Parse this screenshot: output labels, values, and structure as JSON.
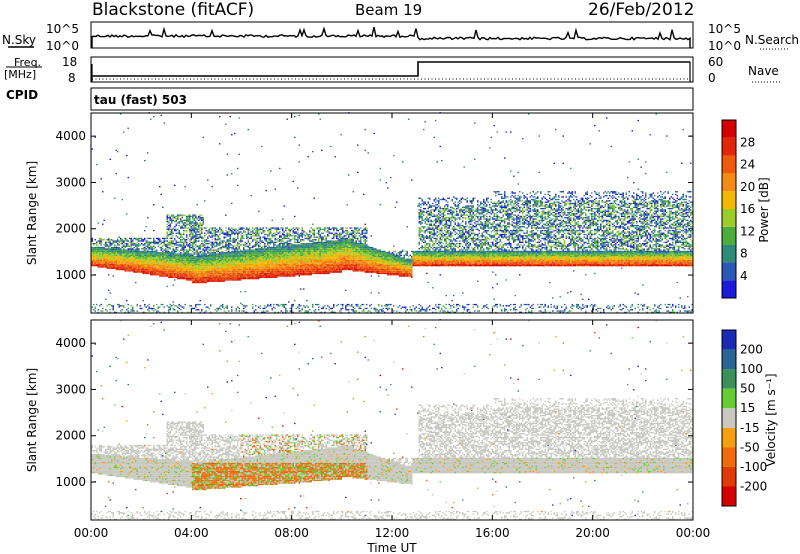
{
  "header": {
    "station": "Blackstone (fitACF)",
    "beam": "Beam 19",
    "date": "26/Feb/2012"
  },
  "noise_panel": {
    "left_label": "N.Sky",
    "right_label": "N.Search",
    "tick_top": "10^5",
    "tick_bottom": "10^0"
  },
  "freq_panel": {
    "left_label_1": "Freq.",
    "left_label_2": "[MHz]",
    "right_label": "Nave",
    "left_ticks": [
      "18",
      "8"
    ],
    "right_ticks": [
      "60",
      "0"
    ],
    "cpid_label": "CPID",
    "mode_label": "tau (fast) 503"
  },
  "x_axis": {
    "label": "Time UT",
    "ticks": [
      "00:00",
      "04:00",
      "08:00",
      "12:00",
      "16:00",
      "20:00",
      "00:00"
    ]
  },
  "chart_data": [
    {
      "type": "heatmap",
      "title": "",
      "xlabel": "Time UT",
      "ylabel": "Slant Range [km]",
      "xlim_hours": [
        0,
        24
      ],
      "ylim_km": [
        180,
        4500
      ],
      "yticks": [
        "1000",
        "2000",
        "3000",
        "4000"
      ],
      "colorbar": {
        "label": "Power [dB]",
        "ticks": [
          "4",
          "8",
          "12",
          "16",
          "20",
          "24",
          "28"
        ],
        "colors": [
          "#1a1ad8",
          "#2a56b4",
          "#2f8a78",
          "#4cae3a",
          "#9ccc2a",
          "#f5b800",
          "#f58a14",
          "#f05a0a",
          "#e02808",
          "#d40000"
        ]
      }
    },
    {
      "type": "heatmap",
      "title": "",
      "xlabel": "Time UT",
      "ylabel": "Slant Range [km]",
      "xlim_hours": [
        0,
        24
      ],
      "ylim_km": [
        180,
        4500
      ],
      "yticks": [
        "1000",
        "2000",
        "3000",
        "4000"
      ],
      "colorbar": {
        "label": "Velocity [m s⁻¹]",
        "ticks": [
          "200",
          "100",
          "50",
          "15",
          "-15",
          "-50",
          "-100",
          "-200"
        ],
        "colors": [
          "#1a2ab4",
          "#2a6494",
          "#3a9058",
          "#66cc33",
          "#c8c8c0",
          "#f5a010",
          "#f06a0a",
          "#e03a08",
          "#d40000"
        ]
      }
    }
  ]
}
